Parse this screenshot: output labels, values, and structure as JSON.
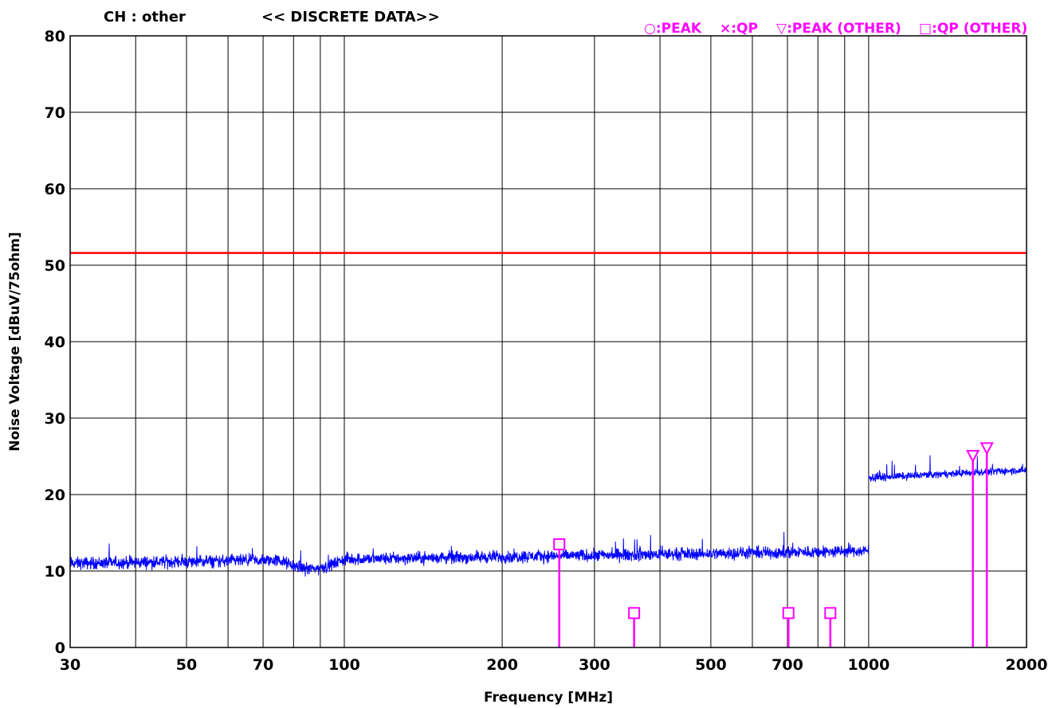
{
  "header": {
    "channel": "CH : other",
    "mode": "<< DISCRETE DATA>>"
  },
  "legend": {
    "peak": "○:PEAK",
    "qp": "×:QP",
    "peak_other": "▽:PEAK (OTHER)",
    "qp_other": "□:QP (OTHER)"
  },
  "chart_data": {
    "type": "line",
    "title": "",
    "xlabel": "Frequency [MHz]",
    "ylabel": "Noise Voltage [dBuV/75ohm]",
    "x_scale": "log",
    "xlim": [
      30,
      2000
    ],
    "ylim": [
      0,
      80
    ],
    "x_ticks": [
      30,
      50,
      70,
      100,
      200,
      300,
      500,
      700,
      1000,
      2000
    ],
    "x_gridlines": [
      30,
      40,
      50,
      60,
      70,
      80,
      90,
      100,
      200,
      300,
      400,
      500,
      600,
      700,
      800,
      900,
      1000,
      2000
    ],
    "y_ticks": [
      0,
      10,
      20,
      30,
      40,
      50,
      60,
      70,
      80
    ],
    "grid": true,
    "legend_position": "top-right",
    "limit_line": {
      "value": 51.6,
      "x_range": [
        30,
        2000
      ]
    },
    "noise_trace": {
      "segments": [
        {
          "x_range": [
            30,
            1000
          ],
          "start_level": 11.0,
          "end_level": 12.6,
          "dip": {
            "x_range": [
              75,
              100
            ],
            "level": 10.3
          },
          "variation": 1.2
        },
        {
          "x_range": [
            1000,
            2000
          ],
          "start_level": 22.2,
          "end_level": 23.2,
          "variation": 0.7
        }
      ]
    },
    "markers": [
      {
        "type": "qp_other",
        "x": 257,
        "y": 13.5
      },
      {
        "type": "qp_other",
        "x": 357,
        "y": 4.5
      },
      {
        "type": "qp_other",
        "x": 703,
        "y": 4.5
      },
      {
        "type": "qp_other",
        "x": 845,
        "y": 4.5
      },
      {
        "type": "peak_other",
        "x": 1580,
        "y": 25.0
      },
      {
        "type": "peak_other",
        "x": 1680,
        "y": 26.0
      }
    ],
    "colors": {
      "trace": "#0000ff",
      "limit": "#ff0000",
      "markers": "#ff00ff",
      "grid": "#000000"
    }
  }
}
